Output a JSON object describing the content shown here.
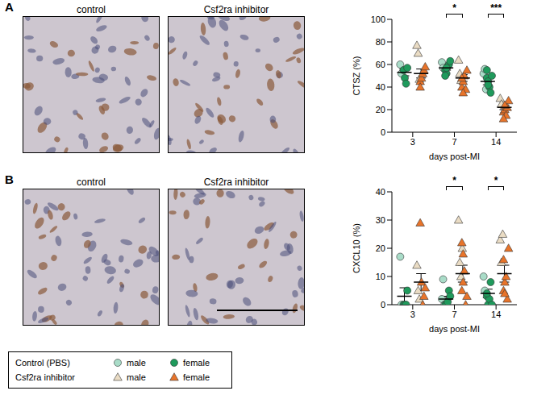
{
  "figure": {
    "panels": [
      {
        "letter": "A",
        "image_titles": [
          "control",
          "Csf2ra inhibitor"
        ]
      },
      {
        "letter": "B",
        "image_titles": [
          "control",
          "Csf2ra inhibitor"
        ]
      }
    ],
    "legend": "bottom",
    "legend_groups": [
      "Control (PBS)",
      "Csf2ra inhibitor"
    ],
    "legend_sexes": [
      "male",
      "female"
    ]
  },
  "chart_data": [
    {
      "type": "scatter",
      "y_label": "CTSZ (%)",
      "x_label": "days post-MI",
      "categories": [
        "3",
        "7",
        "14"
      ],
      "ylim": [
        0,
        100
      ],
      "yticks": [
        0,
        20,
        40,
        60,
        80,
        100
      ],
      "series": [
        {
          "group": "Control (PBS)",
          "sex": "male",
          "color": "#a9dcc8",
          "marker": "circle",
          "values": [
            [
              60,
              52
            ],
            [
              62,
              57
            ],
            [
              52,
              56,
              38
            ]
          ]
        },
        {
          "group": "Control (PBS)",
          "sex": "female",
          "color": "#1f9a5c",
          "marker": "circle",
          "values": [
            [
              55,
              48,
              43,
              57
            ],
            [
              55,
              52,
              58,
              60,
              63,
              50,
              57
            ],
            [
              48,
              45,
              40,
              35,
              50,
              55,
              42
            ]
          ]
        },
        {
          "group": "Csf2ra inhibitor",
          "sex": "male",
          "color": "#eadcc4",
          "marker": "triangle",
          "values": [
            [
              77,
              70,
              47
            ],
            [
              64,
              52,
              46
            ],
            [
              30,
              25
            ]
          ]
        },
        {
          "group": "Csf2ra inhibitor",
          "sex": "female",
          "color": "#e8742a",
          "marker": "triangle",
          "values": [
            [
              45,
              48,
              52,
              55,
              58,
              40
            ],
            [
              40,
              45,
              50,
              38,
              55,
              48,
              35
            ],
            [
              18,
              20,
              15,
              22,
              28,
              12,
              24
            ]
          ]
        }
      ],
      "summary": [
        {
          "group": "Control (PBS)",
          "means": [
            53,
            57,
            45
          ],
          "errors": [
            3,
            2,
            3
          ]
        },
        {
          "group": "Csf2ra inhibitor",
          "means": [
            52,
            48,
            22
          ],
          "errors": [
            4,
            3,
            2
          ]
        }
      ],
      "annotations": [
        {
          "category": "7",
          "label": "*"
        },
        {
          "category": "14",
          "label": "***"
        }
      ]
    },
    {
      "type": "scatter",
      "y_label": "CXCL10 (%)",
      "x_label": "days post-MI",
      "categories": [
        "3",
        "7",
        "14"
      ],
      "ylim": [
        0,
        40
      ],
      "yticks": [
        0,
        10,
        20,
        30,
        40
      ],
      "series": [
        {
          "group": "Control (PBS)",
          "sex": "male",
          "color": "#a9dcc8",
          "marker": "circle",
          "values": [
            [
              17,
              0
            ],
            [
              2,
              9,
              0
            ],
            [
              10,
              5
            ]
          ]
        },
        {
          "group": "Control (PBS)",
          "sex": "female",
          "color": "#1f9a5c",
          "marker": "circle",
          "values": [
            [
              0,
              0,
              0,
              5
            ],
            [
              0,
              0,
              1,
              5,
              3
            ],
            [
              3,
              0,
              2,
              8,
              0,
              4
            ]
          ]
        },
        {
          "group": "Csf2ra inhibitor",
          "sex": "male",
          "color": "#eadcc4",
          "marker": "triangle",
          "values": [
            [
              14,
              5,
              2
            ],
            [
              30,
              15,
              10,
              20
            ],
            [
              23,
              15,
              25
            ]
          ]
        },
        {
          "group": "Csf2ra inhibitor",
          "sex": "female",
          "color": "#e8742a",
          "marker": "triangle",
          "values": [
            [
              29,
              8,
              0,
              3,
              6
            ],
            [
              5,
              8,
              12,
              0,
              3,
              22,
              18
            ],
            [
              5,
              8,
              10,
              2,
              20,
              16,
              4
            ]
          ]
        }
      ],
      "summary": [
        {
          "group": "Control (PBS)",
          "means": [
            3,
            2,
            4
          ],
          "errors": [
            3,
            1,
            1.5
          ]
        },
        {
          "group": "Csf2ra inhibitor",
          "means": [
            8,
            11,
            11
          ],
          "errors": [
            3,
            3,
            3
          ]
        }
      ],
      "annotations": [
        {
          "category": "7",
          "label": "*"
        },
        {
          "category": "14",
          "label": "*"
        }
      ]
    }
  ]
}
